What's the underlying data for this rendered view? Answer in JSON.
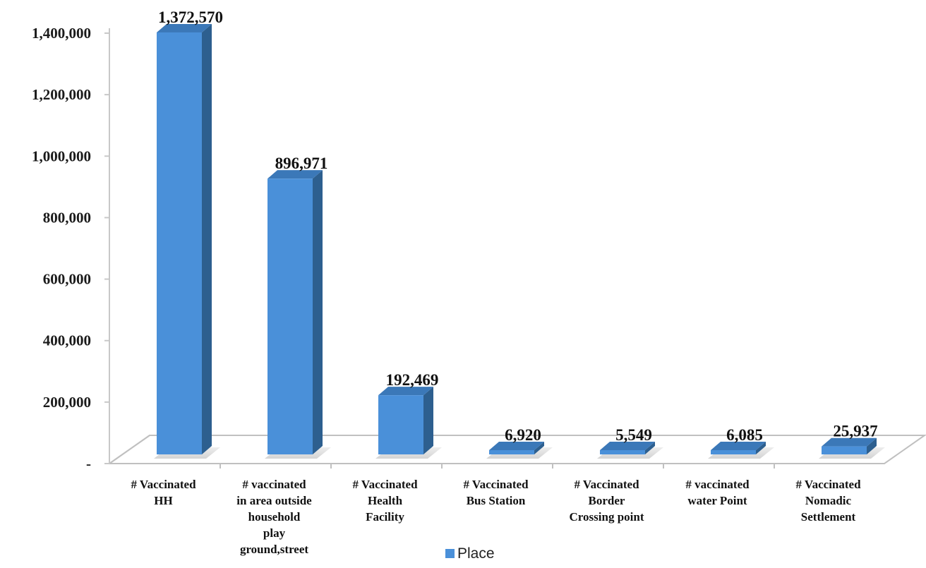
{
  "chart_data": {
    "type": "bar",
    "categories": [
      [
        "# Vaccinated",
        "HH"
      ],
      [
        "#  vaccinated",
        "in area outside",
        "household",
        "play",
        "ground,street"
      ],
      [
        "# Vaccinated",
        "Health",
        "Facility"
      ],
      [
        "# Vaccinated",
        "Bus Station"
      ],
      [
        "# Vaccinated",
        "Border",
        "Crossing point"
      ],
      [
        "# vaccinated",
        "water Point"
      ],
      [
        "# Vaccinated",
        "Nomadic",
        "Settlement"
      ]
    ],
    "series": [
      {
        "name": "Place",
        "values": [
          1372570,
          896971,
          192469,
          6920,
          5549,
          6085,
          25937
        ],
        "value_labels": [
          "1,372,570",
          "896,971",
          "192,469",
          "6,920",
          "5,549",
          "6,085",
          "25,937"
        ],
        "color": "#4a90d9"
      }
    ],
    "ylim": [
      0,
      1400000
    ],
    "yticks": [
      0,
      200000,
      400000,
      600000,
      800000,
      1000000,
      1200000,
      1400000
    ],
    "ytick_labels": [
      "-",
      "200,000",
      "400,000",
      "600,000",
      "800,000",
      "1,000,000",
      "1,200,000",
      "1,400,000"
    ],
    "legend_position": "bottom",
    "grid": false,
    "style": "3d"
  },
  "colors": {
    "bar_front": "#4a90d9",
    "bar_side": "#2d5f8f",
    "bar_top": "#3b78b8",
    "floor_stroke": "#c0c0c0",
    "floor_shadow": "#c8c8c8"
  }
}
